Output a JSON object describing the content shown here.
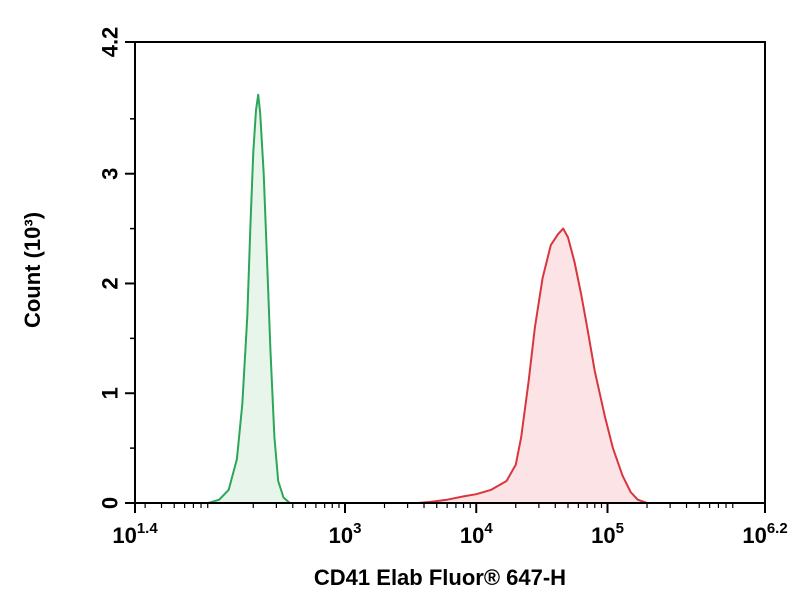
{
  "chart_data": {
    "type": "area",
    "title": "",
    "xlabel": "CD41 Elab Fluor® 647-H",
    "ylabel": "Count (10³)",
    "x_scale": "log",
    "xlim": [
      25.12,
      1584893
    ],
    "ylim": [
      0,
      4.2
    ],
    "x_ticks": [
      {
        "value": 25.12,
        "base": "10",
        "exp": "1.4"
      },
      {
        "value": 1000,
        "base": "10",
        "exp": "3"
      },
      {
        "value": 10000,
        "base": "10",
        "exp": "4"
      },
      {
        "value": 100000,
        "base": "10",
        "exp": "5"
      },
      {
        "value": 1584893,
        "base": "10",
        "exp": "6.2"
      }
    ],
    "y_ticks": [
      {
        "value": 0,
        "label": "0"
      },
      {
        "value": 1,
        "label": "1"
      },
      {
        "value": 2,
        "label": "2"
      },
      {
        "value": 3,
        "label": "3"
      },
      {
        "value": 4.2,
        "label": "4.2"
      }
    ],
    "grid": false,
    "legend": "none",
    "series": [
      {
        "color": "#2ca65a",
        "fill": "#e7f5ea",
        "points": [
          [
            91,
            0.0
          ],
          [
            110,
            0.03
          ],
          [
            130,
            0.12
          ],
          [
            150,
            0.4
          ],
          [
            165,
            0.9
          ],
          [
            180,
            1.7
          ],
          [
            190,
            2.5
          ],
          [
            200,
            3.2
          ],
          [
            210,
            3.58
          ],
          [
            218,
            3.72
          ],
          [
            226,
            3.55
          ],
          [
            240,
            3.0
          ],
          [
            255,
            2.2
          ],
          [
            270,
            1.4
          ],
          [
            290,
            0.6
          ],
          [
            310,
            0.2
          ],
          [
            340,
            0.05
          ],
          [
            380,
            0.0
          ]
        ]
      },
      {
        "color": "#d9353c",
        "fill": "#fce4e6",
        "points": [
          [
            3600,
            0.0
          ],
          [
            4500,
            0.01
          ],
          [
            6000,
            0.03
          ],
          [
            8000,
            0.06
          ],
          [
            10000,
            0.08
          ],
          [
            13000,
            0.12
          ],
          [
            17000,
            0.2
          ],
          [
            20000,
            0.35
          ],
          [
            22000,
            0.6
          ],
          [
            25000,
            1.1
          ],
          [
            28000,
            1.6
          ],
          [
            32000,
            2.05
          ],
          [
            37000,
            2.35
          ],
          [
            42000,
            2.45
          ],
          [
            46000,
            2.5
          ],
          [
            50000,
            2.42
          ],
          [
            56000,
            2.2
          ],
          [
            63000,
            1.9
          ],
          [
            70000,
            1.6
          ],
          [
            80000,
            1.2
          ],
          [
            95000,
            0.8
          ],
          [
            110000,
            0.5
          ],
          [
            130000,
            0.25
          ],
          [
            150000,
            0.1
          ],
          [
            170000,
            0.03
          ],
          [
            200000,
            0.0
          ]
        ]
      }
    ]
  }
}
